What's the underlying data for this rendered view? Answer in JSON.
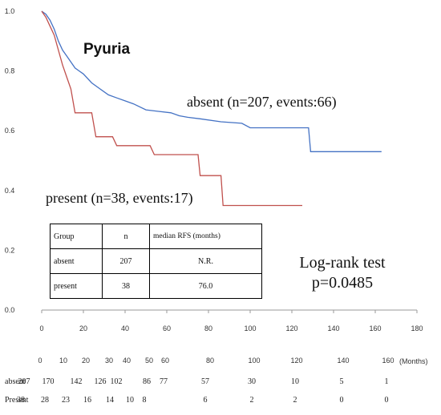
{
  "chart_data": {
    "type": "line",
    "title": "Pyuria",
    "xlim": [
      0,
      180
    ],
    "ylim": [
      0,
      1
    ],
    "x_ticks": [
      0,
      20,
      40,
      60,
      80,
      100,
      120,
      140,
      160,
      180
    ],
    "y_ticks": [
      "0.0",
      "0.2",
      "0.4",
      "0.6",
      "0.8",
      "1.0"
    ],
    "grid": false,
    "series": [
      {
        "name": "absent (n=207, events:66)",
        "color": "#4472c4",
        "points": [
          [
            0,
            1.0
          ],
          [
            2,
            0.99
          ],
          [
            4,
            0.97
          ],
          [
            6,
            0.94
          ],
          [
            8,
            0.9
          ],
          [
            10,
            0.87
          ],
          [
            12,
            0.85
          ],
          [
            14,
            0.83
          ],
          [
            16,
            0.81
          ],
          [
            18,
            0.8
          ],
          [
            20,
            0.79
          ],
          [
            24,
            0.76
          ],
          [
            28,
            0.74
          ],
          [
            32,
            0.72
          ],
          [
            36,
            0.71
          ],
          [
            40,
            0.7
          ],
          [
            44,
            0.69
          ],
          [
            50,
            0.67
          ],
          [
            56,
            0.665
          ],
          [
            62,
            0.66
          ],
          [
            66,
            0.65
          ],
          [
            70,
            0.645
          ],
          [
            76,
            0.64
          ],
          [
            86,
            0.63
          ],
          [
            96,
            0.625
          ],
          [
            100,
            0.61
          ],
          [
            110,
            0.61
          ],
          [
            120,
            0.61
          ],
          [
            128,
            0.61
          ],
          [
            129,
            0.53
          ],
          [
            140,
            0.53
          ],
          [
            160,
            0.53
          ],
          [
            163,
            0.53
          ]
        ]
      },
      {
        "name": "present (n=38, events:17)",
        "color": "#c0504d",
        "points": [
          [
            0,
            1.0
          ],
          [
            2,
            0.98
          ],
          [
            4,
            0.95
          ],
          [
            6,
            0.92
          ],
          [
            8,
            0.87
          ],
          [
            10,
            0.82
          ],
          [
            12,
            0.78
          ],
          [
            14,
            0.74
          ],
          [
            16,
            0.66
          ],
          [
            24,
            0.66
          ],
          [
            26,
            0.58
          ],
          [
            34,
            0.58
          ],
          [
            36,
            0.55
          ],
          [
            52,
            0.55
          ],
          [
            54,
            0.52
          ],
          [
            75,
            0.52
          ],
          [
            76,
            0.45
          ],
          [
            86,
            0.45
          ],
          [
            87,
            0.35
          ],
          [
            100,
            0.35
          ],
          [
            125,
            0.35
          ]
        ]
      }
    ],
    "annotations": {
      "absent_label": "absent (n=207, events:66)",
      "present_label": "present (n=38, events:17)",
      "logrank_title": "Log-rank test",
      "logrank_p": "p=0.0485"
    },
    "table": {
      "headers": [
        "Group",
        "n",
        "median RFS (months)"
      ],
      "rows": [
        [
          "absent",
          "207",
          "N.R."
        ],
        [
          "present",
          "38",
          "76.0"
        ]
      ]
    },
    "risk_table": {
      "times": [
        0,
        10,
        20,
        30,
        40,
        50,
        60,
        80,
        100,
        120,
        140,
        160
      ],
      "unit": "(Months)",
      "rows": [
        {
          "label": "absent",
          "values": [
            "207",
            "170",
            "142",
            "126",
            "102",
            "86",
            "77",
            "57",
            "30",
            "10",
            "5",
            "1"
          ]
        },
        {
          "label": "Present",
          "values": [
            "38",
            "28",
            "23",
            "16",
            "14",
            "10",
            "8",
            "6",
            "2",
            "2",
            "0",
            "0"
          ]
        }
      ]
    }
  }
}
